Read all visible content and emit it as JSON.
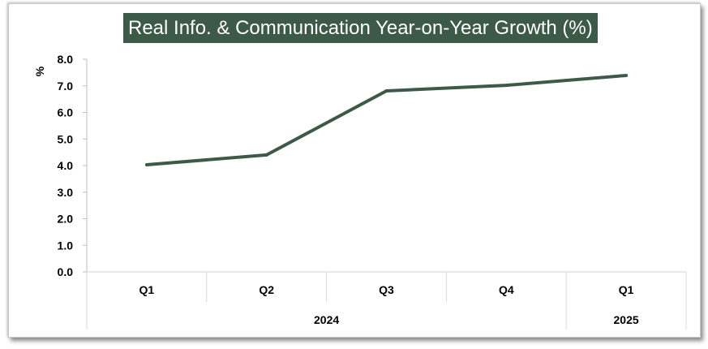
{
  "chart_data": {
    "type": "line",
    "title": "Real Info. & Communication Year-on-Year Growth (%)",
    "ylabel": "%",
    "xlabel": "",
    "ylim": [
      0,
      8
    ],
    "yticks": [
      "0.0",
      "1.0",
      "2.0",
      "3.0",
      "4.0",
      "5.0",
      "6.0",
      "7.0",
      "8.0"
    ],
    "categories": [
      "Q1",
      "Q2",
      "Q3",
      "Q4",
      "Q1"
    ],
    "groups": [
      {
        "label": "2024",
        "span": 4
      },
      {
        "label": "2025",
        "span": 1
      }
    ],
    "series": [
      {
        "values": [
          4.03,
          4.4,
          6.81,
          7.02,
          7.39
        ],
        "color": "#3d5a48"
      }
    ],
    "grid": false,
    "legend": "none"
  }
}
